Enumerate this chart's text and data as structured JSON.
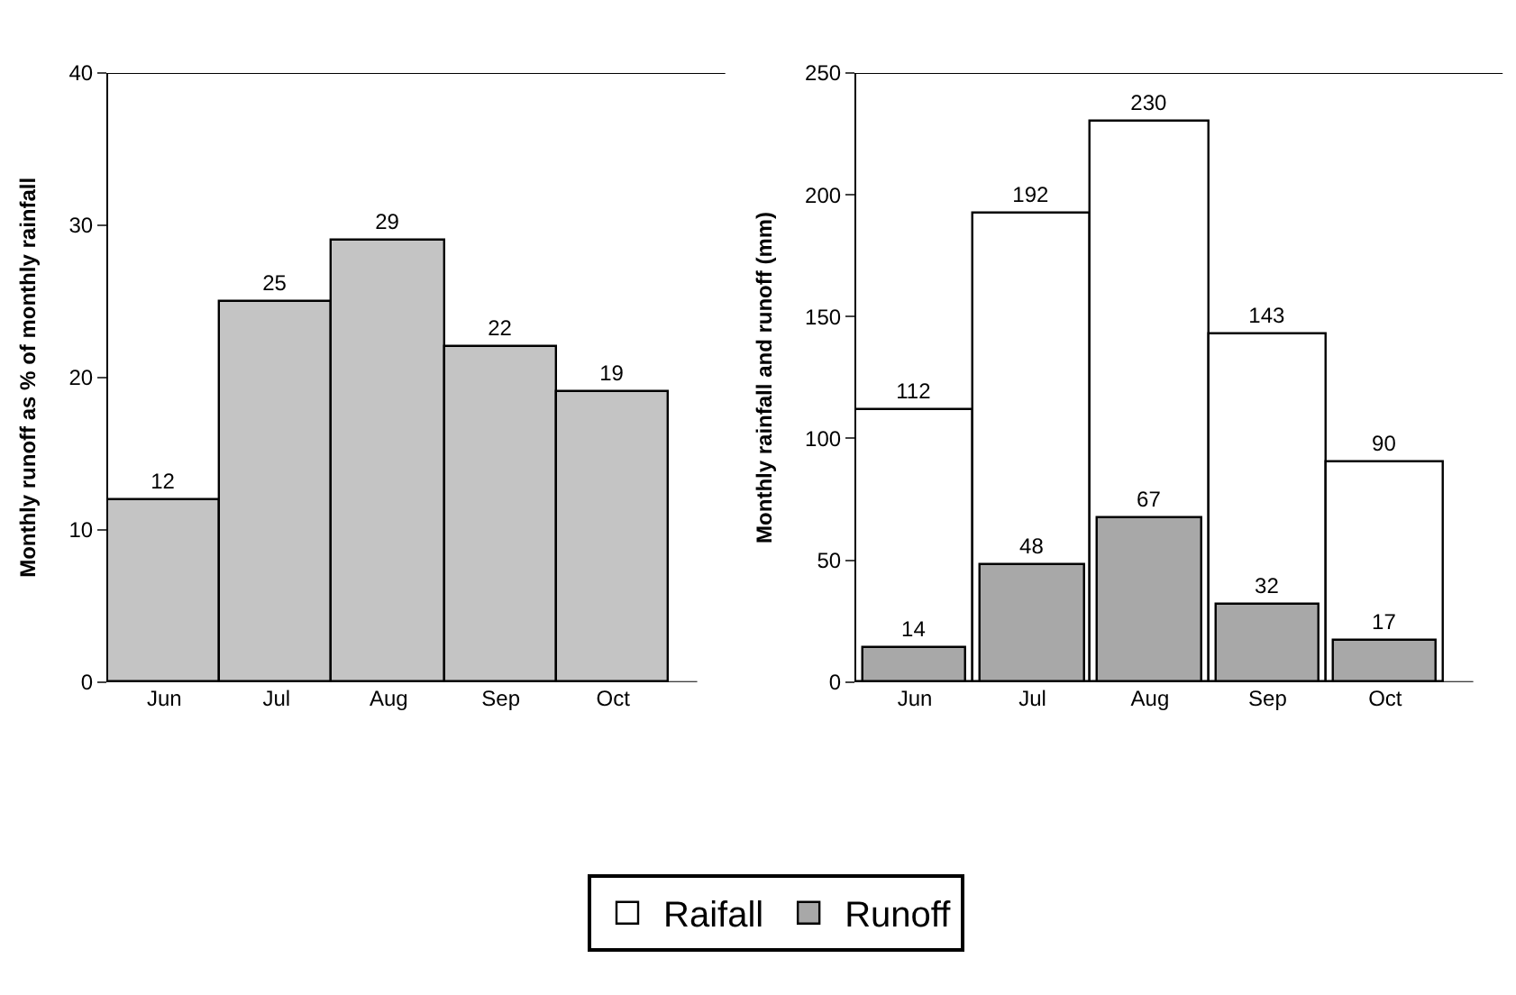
{
  "chart_data": [
    {
      "type": "bar",
      "categories": [
        "Jun",
        "Jul",
        "Aug",
        "Sep",
        "Oct"
      ],
      "values": [
        12,
        25,
        29,
        22,
        19
      ],
      "color": "#c4c4c4",
      "ylabel": "Monthly runoff as % of monthly rainfall",
      "ylim": [
        0,
        40
      ],
      "yticks": [
        0,
        10,
        20,
        30,
        40
      ],
      "data_labels": true
    },
    {
      "type": "bar",
      "categories": [
        "Jun",
        "Jul",
        "Aug",
        "Sep",
        "Oct"
      ],
      "ylabel": "Monthly rainfall and runoff (mm)",
      "ylim": [
        0,
        250
      ],
      "yticks": [
        0,
        50,
        100,
        150,
        200,
        250
      ],
      "data_labels": true,
      "legend": "bottom",
      "series": [
        {
          "name": "Raifall",
          "color": "#ffffff",
          "values": [
            112,
            192,
            230,
            143,
            90
          ]
        },
        {
          "name": "Runoff",
          "color": "#a8a8a8",
          "values": [
            14,
            48,
            67,
            32,
            17
          ]
        }
      ]
    }
  ]
}
